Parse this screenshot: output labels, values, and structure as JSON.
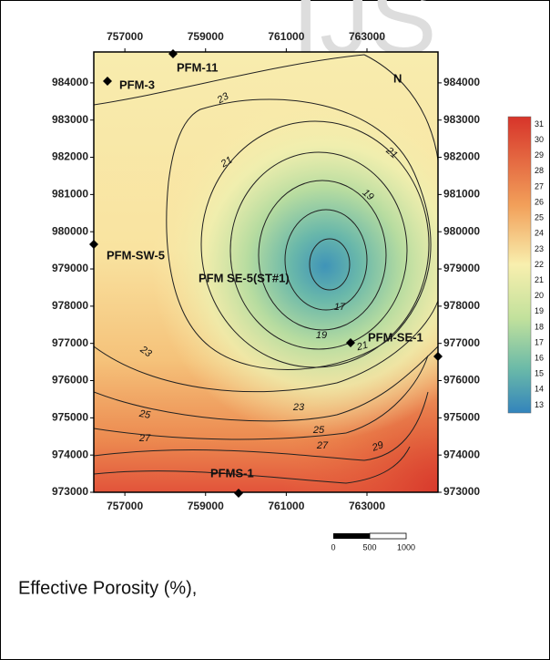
{
  "watermark": "IJS",
  "map": {
    "xticks": [
      757000,
      759000,
      761000,
      763000
    ],
    "yticks": [
      984000,
      983000,
      982000,
      981000,
      980000,
      979000,
      978000,
      977000,
      976000,
      975000,
      974000,
      973000
    ],
    "xlim": [
      756230,
      764760
    ],
    "ylim": [
      973000,
      984830
    ],
    "north": "N",
    "wells": [
      "PFM-11",
      "PFM-3",
      "PFM-SW-5",
      "PFM SE-5(ST#1)",
      "PFM-SE-1",
      "PFMS-1"
    ],
    "contour_labels": [
      "23",
      "21",
      "21",
      "19",
      "17",
      "19",
      "21",
      "23",
      "23",
      "25",
      "25",
      "27",
      "27",
      "29"
    ],
    "colorbar": [
      "31",
      "30",
      "29",
      "28",
      "27",
      "26",
      "25",
      "24",
      "23",
      "22",
      "21",
      "20",
      "19",
      "18",
      "17",
      "16",
      "15",
      "14",
      "13"
    ],
    "scale_bar": [
      "0",
      "500",
      "1000"
    ]
  },
  "caption": "Effective Porosity (%),"
}
